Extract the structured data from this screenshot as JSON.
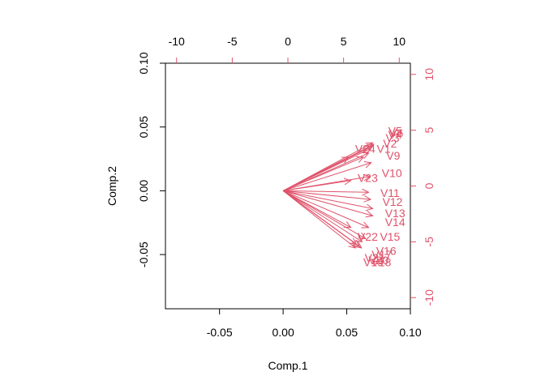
{
  "chart_data": {
    "type": "biplot",
    "xlabel": "Comp.1",
    "ylabel": "Comp.2",
    "xlim": [
      -0.0925,
      0.1
    ],
    "ylim": [
      -0.0925,
      0.1
    ],
    "x_ticks": [
      -0.05,
      0.0,
      0.05,
      0.1
    ],
    "x_tick_labels": [
      "-0.05",
      "0.00",
      "0.05",
      "0.10"
    ],
    "y_ticks": [
      -0.05,
      0.0,
      0.05,
      0.1
    ],
    "y_tick_labels": [
      "-0.05",
      "0.00",
      "0.05",
      "0.10"
    ],
    "top_ticks": [
      -10,
      -5,
      0,
      5,
      10
    ],
    "top_tick_labels": [
      "-10",
      "-5",
      "0",
      "5",
      "10"
    ],
    "right_ticks": [
      -10,
      -5,
      0,
      5,
      10
    ],
    "right_tick_labels": [
      "-10",
      "-5",
      "0",
      "5",
      "10"
    ],
    "secondary_range": [
      -11.0,
      11.0
    ],
    "arrow_color": "#DF536B",
    "loading_scale": 0.8,
    "variables": [
      {
        "name": "V5",
        "x": 0.088,
        "y": 0.047
      },
      {
        "name": "V4",
        "x": 0.088,
        "y": 0.044
      },
      {
        "name": "V6",
        "x": 0.089,
        "y": 0.0455
      },
      {
        "name": "V3",
        "x": 0.086,
        "y": 0.0415
      },
      {
        "name": "V2",
        "x": 0.084,
        "y": 0.037
      },
      {
        "name": "V1",
        "x": 0.079,
        "y": 0.033
      },
      {
        "name": "V24",
        "x": 0.0645,
        "y": 0.033
      },
      {
        "name": "V9",
        "x": 0.0865,
        "y": 0.0275
      },
      {
        "name": "V10",
        "x": 0.0855,
        "y": 0.014
      },
      {
        "name": "V23",
        "x": 0.0665,
        "y": 0.01
      },
      {
        "name": "V11",
        "x": 0.084,
        "y": -0.0015
      },
      {
        "name": "V12",
        "x": 0.086,
        "y": -0.0085
      },
      {
        "name": "V13",
        "x": 0.088,
        "y": -0.0175
      },
      {
        "name": "V14",
        "x": 0.088,
        "y": -0.0245
      },
      {
        "name": "V22",
        "x": 0.0665,
        "y": -0.036
      },
      {
        "name": "V15",
        "x": 0.084,
        "y": -0.036
      },
      {
        "name": "V16",
        "x": 0.081,
        "y": -0.047
      },
      {
        "name": "V17",
        "x": 0.0775,
        "y": -0.05
      },
      {
        "name": "V21",
        "x": 0.072,
        "y": -0.0525
      },
      {
        "name": "V20",
        "x": 0.075,
        "y": -0.0545
      },
      {
        "name": "V18",
        "x": 0.077,
        "y": -0.056
      },
      {
        "name": "V19",
        "x": 0.071,
        "y": -0.056
      }
    ]
  }
}
